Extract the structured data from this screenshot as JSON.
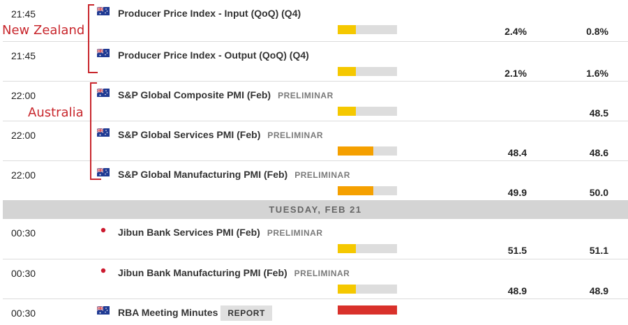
{
  "annotations": {
    "group1_label": "New Zealand",
    "group2_label": "Australia",
    "color": "#c8262c"
  },
  "colors": {
    "impact_low": "#f5c800",
    "impact_medium": "#f5a000",
    "impact_high": "#d9312b",
    "bar_track": "#dddddd"
  },
  "day_header": "TUESDAY, FEB 21",
  "events_day1": [
    {
      "time": "21:45",
      "flag": "nz-flag-icon",
      "title": "Producer Price Index - Input (QoQ) (Q4)",
      "tag": "",
      "impact": "low",
      "impact_fill": 0.3,
      "previous": "2.4%",
      "consensus": "0.8%"
    },
    {
      "time": "21:45",
      "flag": "nz-flag-icon",
      "title": "Producer Price Index - Output (QoQ) (Q4)",
      "tag": "",
      "impact": "low",
      "impact_fill": 0.3,
      "previous": "2.1%",
      "consensus": "1.6%"
    },
    {
      "time": "22:00",
      "flag": "au-flag-icon",
      "title": "S&P Global Composite PMI (Feb)",
      "tag": "PRELIMINAR",
      "impact": "low",
      "impact_fill": 0.3,
      "previous": "",
      "consensus": "48.5"
    },
    {
      "time": "22:00",
      "flag": "au-flag-icon",
      "title": "S&P Global Services PMI (Feb)",
      "tag": "PRELIMINAR",
      "impact": "medium",
      "impact_fill": 0.6,
      "previous": "48.4",
      "consensus": "48.6"
    },
    {
      "time": "22:00",
      "flag": "au-flag-icon",
      "title": "S&P Global Manufacturing PMI (Feb)",
      "tag": "PRELIMINAR",
      "impact": "medium",
      "impact_fill": 0.6,
      "previous": "49.9",
      "consensus": "50.0"
    }
  ],
  "events_day2": [
    {
      "time": "00:30",
      "flag": "jp-flag-icon",
      "title": "Jibun Bank Services PMI (Feb)",
      "tag": "PRELIMINAR",
      "impact": "low",
      "impact_fill": 0.3,
      "previous": "51.5",
      "consensus": "51.1"
    },
    {
      "time": "00:30",
      "flag": "jp-flag-icon",
      "title": "Jibun Bank Manufacturing PMI (Feb)",
      "tag": "PRELIMINAR",
      "impact": "low",
      "impact_fill": 0.3,
      "previous": "48.9",
      "consensus": "48.9"
    },
    {
      "time": "00:30",
      "flag": "au-flag-icon",
      "title": "RBA Meeting Minutes",
      "tag": "REPORT",
      "impact": "high",
      "impact_fill": 1.0,
      "previous": "",
      "consensus": ""
    }
  ]
}
